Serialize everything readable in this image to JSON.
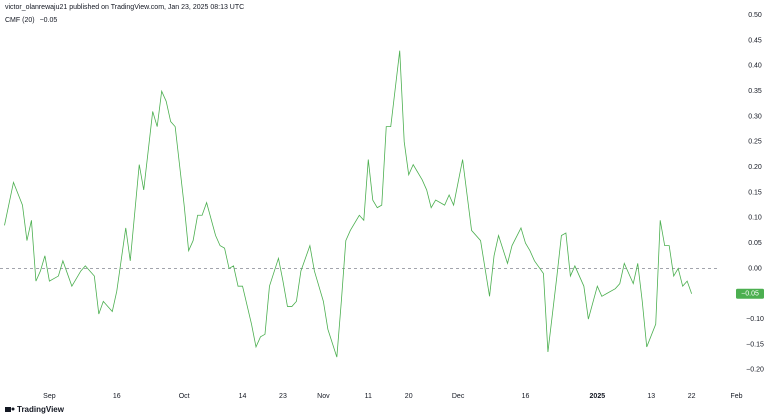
{
  "header": {
    "publisher": "victor_olanrewaju21 published on TradingView.com, Jan 23, 2025 08:13 UTC"
  },
  "footer": {
    "brand": "TradingView"
  },
  "chart_data": {
    "type": "line",
    "series": [
      {
        "name": "CMF (20)",
        "color": "#4caf50",
        "legend_value": {
          "value": -0.05,
          "label": "−0.05"
        },
        "x": [
          "2024-08-22",
          "2024-08-24",
          "2024-08-26",
          "2024-08-27",
          "2024-08-28",
          "2024-08-29",
          "2024-08-30",
          "2024-08-31",
          "2024-09-01",
          "2024-09-03",
          "2024-09-04",
          "2024-09-06",
          "2024-09-08",
          "2024-09-09",
          "2024-09-11",
          "2024-09-12",
          "2024-09-13",
          "2024-09-15",
          "2024-09-16",
          "2024-09-18",
          "2024-09-19",
          "2024-09-21",
          "2024-09-22",
          "2024-09-24",
          "2024-09-25",
          "2024-09-26",
          "2024-09-27",
          "2024-09-28",
          "2024-09-29",
          "2024-10-01",
          "2024-10-02",
          "2024-10-03",
          "2024-10-04",
          "2024-10-05",
          "2024-10-06",
          "2024-10-08",
          "2024-10-09",
          "2024-10-10",
          "2024-10-11",
          "2024-10-12",
          "2024-10-13",
          "2024-10-14",
          "2024-10-16",
          "2024-10-17",
          "2024-10-18",
          "2024-10-19",
          "2024-10-20",
          "2024-10-22",
          "2024-10-23",
          "2024-10-24",
          "2024-10-25",
          "2024-10-26",
          "2024-10-27",
          "2024-10-29",
          "2024-10-30",
          "2024-11-01",
          "2024-11-02",
          "2024-11-04",
          "2024-11-05",
          "2024-11-06",
          "2024-11-07",
          "2024-11-09",
          "2024-11-10",
          "2024-11-11",
          "2024-11-12",
          "2024-11-13",
          "2024-11-14",
          "2024-11-15",
          "2024-11-16",
          "2024-11-18",
          "2024-11-19",
          "2024-11-20",
          "2024-11-21",
          "2024-11-23",
          "2024-11-24",
          "2024-11-25",
          "2024-11-26",
          "2024-11-28",
          "2024-11-29",
          "2024-11-30",
          "2024-12-02",
          "2024-12-03",
          "2024-12-04",
          "2024-12-06",
          "2024-12-08",
          "2024-12-09",
          "2024-12-10",
          "2024-12-12",
          "2024-12-13",
          "2024-12-15",
          "2024-12-16",
          "2024-12-17",
          "2024-12-18",
          "2024-12-20",
          "2024-12-21",
          "2024-12-23",
          "2024-12-24",
          "2024-12-25",
          "2024-12-26",
          "2024-12-27",
          "2024-12-29",
          "2024-12-30",
          "2025-01-01",
          "2025-01-02",
          "2025-01-03",
          "2025-01-05",
          "2025-01-06",
          "2025-01-07",
          "2025-01-09",
          "2025-01-10",
          "2025-01-11",
          "2025-01-12",
          "2025-01-14",
          "2025-01-15",
          "2025-01-16",
          "2025-01-17",
          "2025-01-18",
          "2025-01-19",
          "2025-01-20",
          "2025-01-21",
          "2025-01-22"
        ],
        "values": [
          0.085,
          0.17,
          0.125,
          0.055,
          0.095,
          -0.025,
          -0.005,
          0.025,
          -0.025,
          -0.015,
          0.015,
          -0.035,
          -0.005,
          0.005,
          -0.015,
          -0.09,
          -0.065,
          -0.085,
          -0.045,
          0.08,
          0.015,
          0.205,
          0.155,
          0.31,
          0.28,
          0.35,
          0.33,
          0.29,
          0.28,
          0.125,
          0.035,
          0.055,
          0.105,
          0.105,
          0.13,
          0.065,
          0.045,
          0.04,
          0.0,
          0.005,
          -0.035,
          -0.035,
          -0.11,
          -0.155,
          -0.135,
          -0.13,
          -0.035,
          0.02,
          -0.025,
          -0.075,
          -0.075,
          -0.065,
          -0.005,
          0.045,
          -0.005,
          -0.065,
          -0.12,
          -0.175,
          -0.065,
          0.055,
          0.075,
          0.105,
          0.095,
          0.215,
          0.135,
          0.12,
          0.125,
          0.28,
          0.28,
          0.43,
          0.25,
          0.185,
          0.205,
          0.175,
          0.155,
          0.12,
          0.135,
          0.125,
          0.145,
          0.125,
          0.215,
          0.145,
          0.075,
          0.055,
          -0.055,
          0.025,
          0.065,
          0.01,
          0.045,
          0.08,
          0.05,
          0.035,
          0.015,
          -0.01,
          -0.165,
          -0.015,
          0.065,
          0.07,
          -0.015,
          0.005,
          -0.035,
          -0.1,
          -0.035,
          -0.055,
          -0.05,
          -0.04,
          -0.03,
          0.01,
          -0.03,
          0.01,
          -0.065,
          -0.155,
          -0.11,
          0.095,
          0.045,
          0.045,
          -0.015,
          0.0,
          -0.035,
          -0.025,
          -0.05
        ]
      }
    ],
    "xlim": [
      "2024-08-21",
      "2025-02-08"
    ],
    "xticks": [
      {
        "value": "2024-09-01",
        "label": "Sep"
      },
      {
        "value": "2024-09-16",
        "label": "16"
      },
      {
        "value": "2024-10-01",
        "label": "Oct"
      },
      {
        "value": "2024-10-14",
        "label": "14"
      },
      {
        "value": "2024-10-23",
        "label": "23"
      },
      {
        "value": "2024-11-01",
        "label": "Nov"
      },
      {
        "value": "2024-11-11",
        "label": "11"
      },
      {
        "value": "2024-11-20",
        "label": "20"
      },
      {
        "value": "2024-12-01",
        "label": "Dec"
      },
      {
        "value": "2024-12-16",
        "label": "16"
      },
      {
        "value": "2025-01-01",
        "label": "2025"
      },
      {
        "value": "2025-01-13",
        "label": "13"
      },
      {
        "value": "2025-01-22",
        "label": "22"
      },
      {
        "value": "2025-02-01",
        "label": "Feb"
      }
    ],
    "ylim": [
      -0.24,
      0.53
    ],
    "yticks": [
      {
        "value": 0.5,
        "label": "0.50"
      },
      {
        "value": 0.45,
        "label": "0.45"
      },
      {
        "value": 0.4,
        "label": "0.40"
      },
      {
        "value": 0.35,
        "label": "0.35"
      },
      {
        "value": 0.3,
        "label": "0.30"
      },
      {
        "value": 0.25,
        "label": "0.25"
      },
      {
        "value": 0.2,
        "label": "0.20"
      },
      {
        "value": 0.15,
        "label": "0.15"
      },
      {
        "value": 0.1,
        "label": "0.10"
      },
      {
        "value": 0.05,
        "label": "0.05"
      },
      {
        "value": 0,
        "label": "0.00"
      },
      {
        "value": -0.05,
        "label": "−0.05"
      },
      {
        "value": -0.1,
        "label": "−0.10"
      },
      {
        "value": -0.15,
        "label": "−0.15"
      },
      {
        "value": -0.2,
        "label": "−0.20"
      }
    ],
    "reference_line": 0,
    "grid": false
  }
}
